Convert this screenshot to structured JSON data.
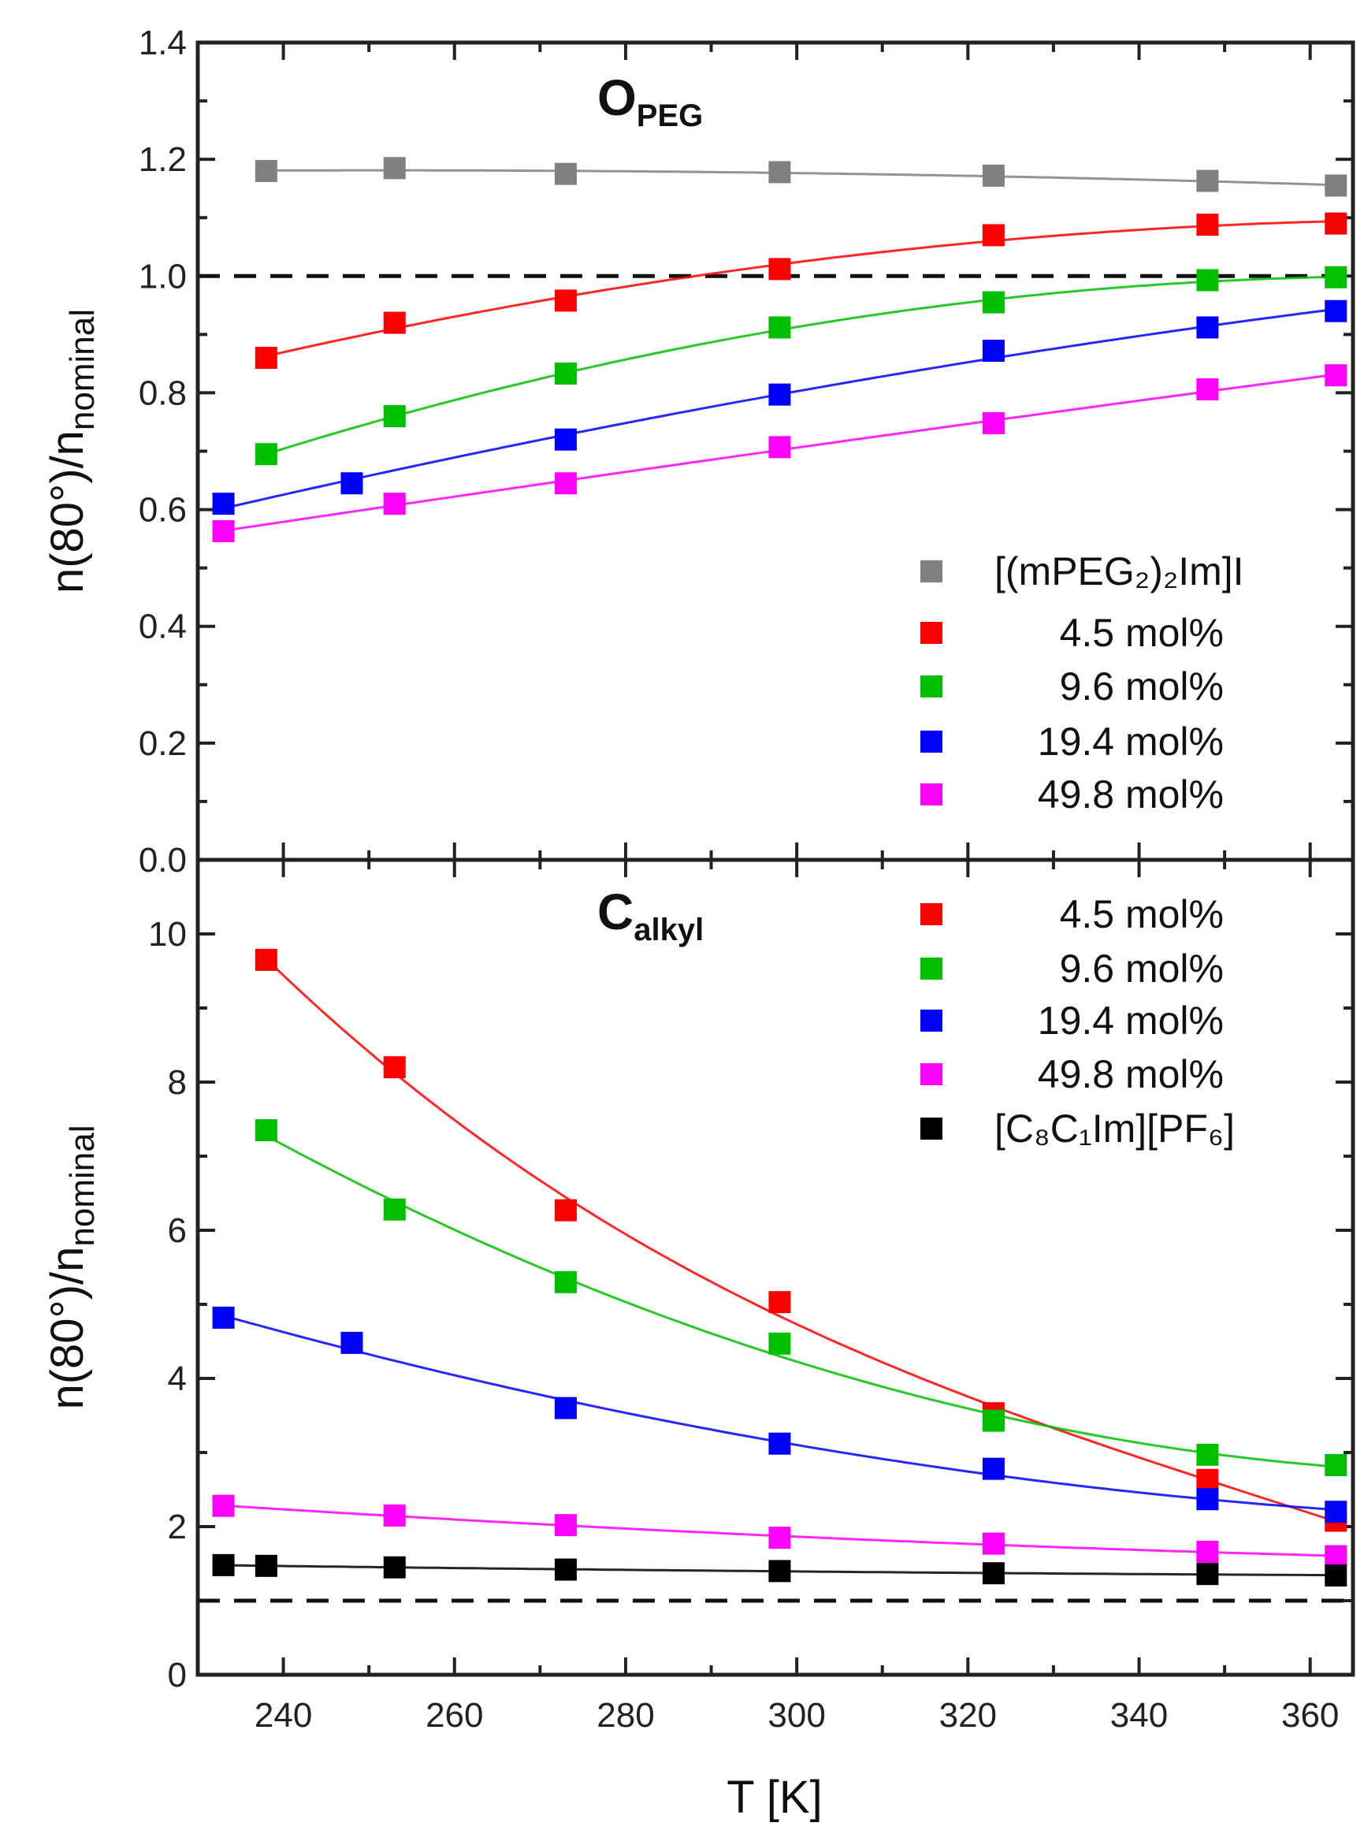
{
  "chart_data": [
    {
      "type": "scatter",
      "panel": "top",
      "title_main": "O",
      "title_sub": "PEG",
      "ylabel_main": "n(80°)/n",
      "ylabel_sub": "nominal",
      "xlim": [
        230,
        365
      ],
      "ylim": [
        0,
        1.4
      ],
      "yticks": [
        0.0,
        0.2,
        0.4,
        0.6,
        0.8,
        1.0,
        1.2,
        1.4
      ],
      "ytick_labels": [
        "0.0",
        "0.2",
        "0.4",
        "0.6",
        "0.8",
        "1.0",
        "1.2",
        "1.4"
      ],
      "reference_line": 1.0,
      "legend_position": "bottom-right",
      "series": [
        {
          "name": "[(mPEG₂)₂Im]I",
          "color": "#808080",
          "x": [
            238,
            253,
            273,
            298,
            323,
            348,
            363
          ],
          "y": [
            1.18,
            1.185,
            1.175,
            1.178,
            1.172,
            1.163,
            1.155
          ]
        },
        {
          "name": "4.5 mol%",
          "color": "#ff0000",
          "x": [
            238,
            253,
            273,
            298,
            323,
            348,
            363
          ],
          "y": [
            0.86,
            0.92,
            0.958,
            1.012,
            1.07,
            1.088,
            1.09
          ]
        },
        {
          "name": "9.6 mol%",
          "color": "#00c000",
          "x": [
            238,
            253,
            273,
            298,
            323,
            348,
            363
          ],
          "y": [
            0.695,
            0.76,
            0.833,
            0.912,
            0.955,
            0.993,
            0.998
          ]
        },
        {
          "name": "19.4 mol%",
          "color": "#0000ff",
          "x": [
            233,
            248,
            273,
            298,
            323,
            348,
            363
          ],
          "y": [
            0.61,
            0.645,
            0.72,
            0.797,
            0.872,
            0.912,
            0.94
          ]
        },
        {
          "name": "49.8 mol%",
          "color": "#ff00ff",
          "x": [
            233,
            253,
            273,
            298,
            323,
            348,
            363
          ],
          "y": [
            0.563,
            0.61,
            0.645,
            0.707,
            0.748,
            0.806,
            0.83
          ]
        }
      ]
    },
    {
      "type": "scatter",
      "panel": "bottom",
      "title_main": "C",
      "title_sub": "alkyl",
      "ylabel_main": "n(80°)/n",
      "ylabel_sub": "nominal",
      "xlabel": "T [K]",
      "xlim": [
        230,
        365
      ],
      "ylim": [
        0,
        11
      ],
      "xticks": [
        240,
        260,
        280,
        300,
        320,
        340,
        360
      ],
      "xtick_labels": [
        "240",
        "260",
        "280",
        "300",
        "320",
        "340",
        "360"
      ],
      "yticks": [
        0,
        2,
        4,
        6,
        8,
        10
      ],
      "ytick_labels": [
        "0",
        "2",
        "4",
        "6",
        "8",
        "10"
      ],
      "reference_line": 1.0,
      "legend_position": "top-right",
      "series": [
        {
          "name": "4.5 mol%",
          "color": "#ff0000",
          "x": [
            238,
            253,
            273,
            298,
            323,
            348,
            363
          ],
          "y": [
            9.65,
            8.2,
            6.27,
            5.03,
            3.53,
            2.63,
            2.08
          ]
        },
        {
          "name": "9.6 mol%",
          "color": "#00c000",
          "x": [
            238,
            253,
            273,
            298,
            323,
            348,
            363
          ],
          "y": [
            7.35,
            6.28,
            5.3,
            4.47,
            3.43,
            2.97,
            2.83
          ]
        },
        {
          "name": "19.4 mol%",
          "color": "#0000ff",
          "x": [
            233,
            248,
            273,
            298,
            323,
            348,
            363
          ],
          "y": [
            4.82,
            4.48,
            3.6,
            3.12,
            2.78,
            2.37,
            2.2
          ]
        },
        {
          "name": "49.8 mol%",
          "color": "#ff00ff",
          "x": [
            233,
            253,
            273,
            298,
            323,
            348,
            363
          ],
          "y": [
            2.28,
            2.15,
            2.02,
            1.85,
            1.77,
            1.66,
            1.6
          ]
        },
        {
          "name": "[C₈C₁Im][PF₆]",
          "color": "#000000",
          "x": [
            233,
            238,
            253,
            273,
            298,
            323,
            348,
            363
          ],
          "y": [
            1.48,
            1.47,
            1.45,
            1.42,
            1.4,
            1.37,
            1.36,
            1.34
          ]
        }
      ]
    }
  ]
}
